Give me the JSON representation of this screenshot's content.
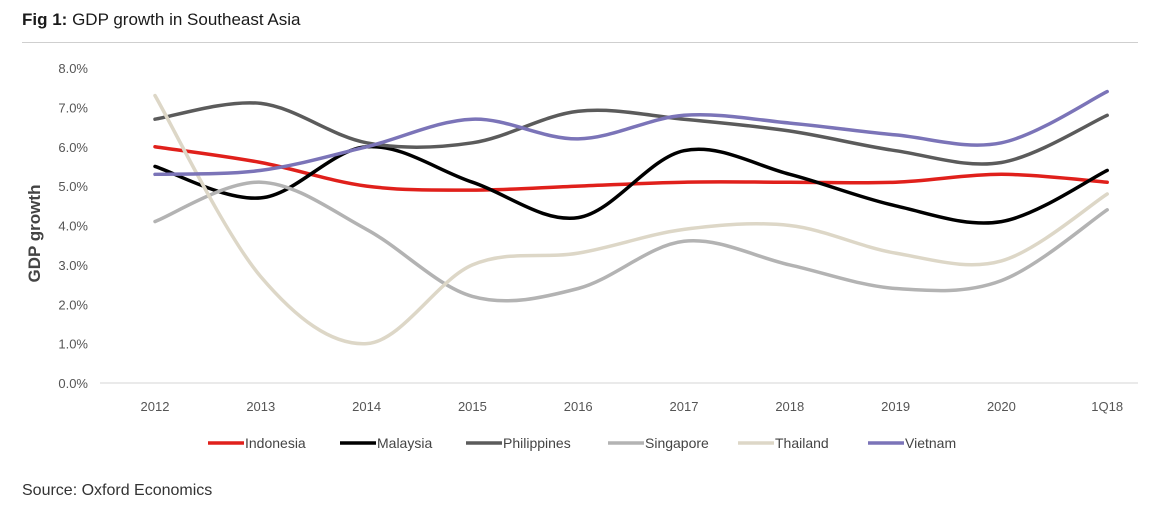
{
  "figure": {
    "title_bold": "Fig 1:",
    "title_rest": " GDP growth in Southeast Asia",
    "source": "Source: Oxford Economics"
  },
  "chart_data": {
    "type": "line",
    "title": "GDP growth in Southeast Asia",
    "ylabel": "GDP growth",
    "xlabel": "",
    "x": [
      "2012",
      "2013",
      "2014",
      "2015",
      "2016",
      "2017",
      "2018",
      "2019",
      "2020",
      "1Q18"
    ],
    "ylim": [
      0,
      8
    ],
    "ytick_labels": [
      "0.0%",
      "1.0%",
      "2.0%",
      "3.0%",
      "4.0%",
      "5.0%",
      "6.0%",
      "7.0%",
      "8.0%"
    ],
    "grid": false,
    "legend_position": "bottom",
    "series": [
      {
        "name": "Indonesia",
        "color": "#e0201b",
        "values": [
          6.0,
          5.6,
          5.0,
          4.9,
          5.0,
          5.1,
          5.1,
          5.1,
          5.3,
          5.1
        ]
      },
      {
        "name": "Malaysia",
        "color": "#000000",
        "values": [
          5.5,
          4.7,
          6.0,
          5.1,
          4.2,
          5.9,
          5.3,
          4.5,
          4.1,
          5.4
        ]
      },
      {
        "name": "Philippines",
        "color": "#5b5b5b",
        "values": [
          6.7,
          7.1,
          6.1,
          6.1,
          6.9,
          6.7,
          6.4,
          5.9,
          5.6,
          6.8
        ]
      },
      {
        "name": "Singapore",
        "color": "#b3b3b3",
        "values": [
          4.1,
          5.1,
          3.9,
          2.2,
          2.4,
          3.6,
          3.0,
          2.4,
          2.6,
          4.4
        ]
      },
      {
        "name": "Thailand",
        "color": "#ddd7c7",
        "values": [
          7.3,
          2.7,
          1.0,
          3.0,
          3.3,
          3.9,
          4.0,
          3.3,
          3.1,
          4.8
        ]
      },
      {
        "name": "Vietnam",
        "color": "#7b74b8",
        "values": [
          5.3,
          5.4,
          6.0,
          6.7,
          6.2,
          6.8,
          6.6,
          6.3,
          6.1,
          7.4
        ]
      }
    ]
  }
}
